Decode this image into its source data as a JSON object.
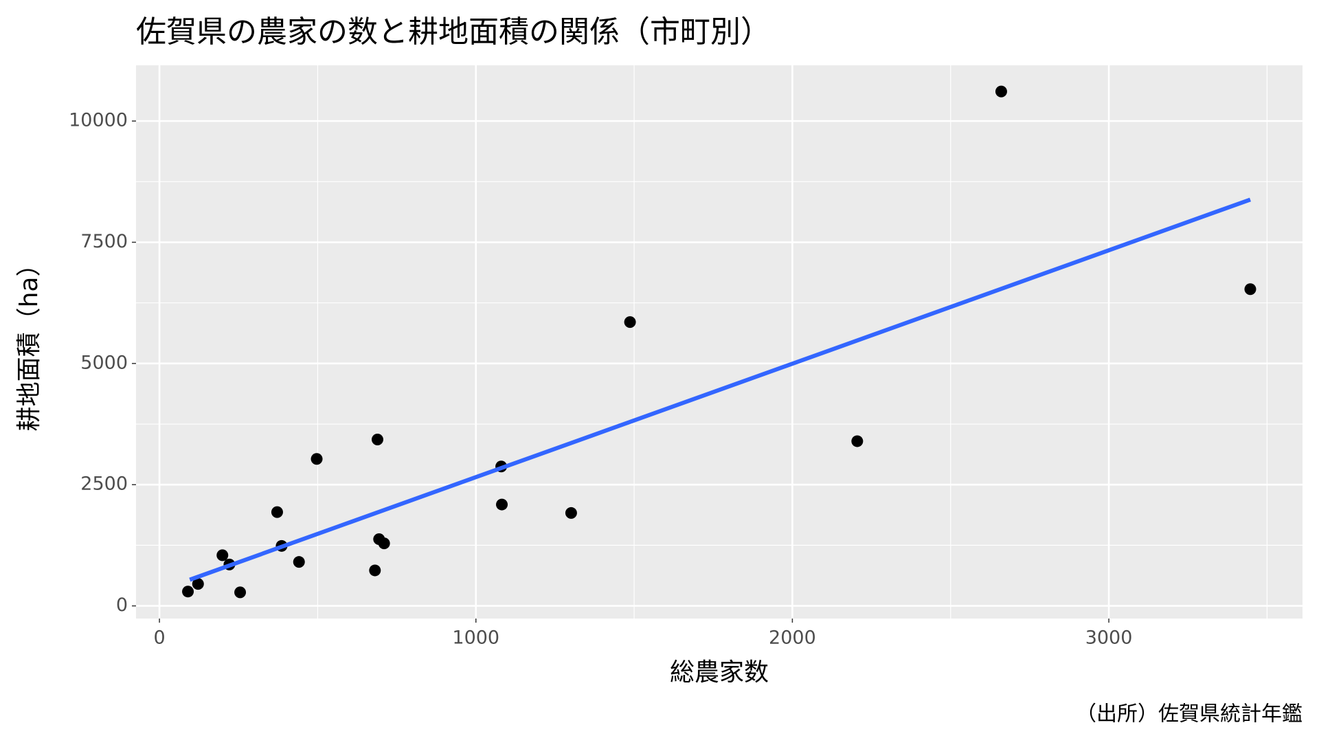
{
  "chart_data": {
    "type": "scatter",
    "title": "佐賀県の農家の数と耕地面積の関係（市町別）",
    "x_label": "総農家数",
    "y_label": "耕地面積（ha）",
    "caption": "（出所）佐賀県統計年鑑",
    "series": [
      {
        "color": "#000000",
        "x": [
          90,
          122,
          199,
          221,
          255,
          372,
          386,
          441,
          497,
          681,
          689,
          694,
          710,
          1080,
          1082,
          1301,
          1487,
          2205,
          2660,
          3447
        ],
        "values": [
          296,
          453,
          1045,
          854,
          279,
          1934,
          1237,
          906,
          3031,
          732,
          3432,
          1376,
          1289,
          2875,
          2091,
          1916,
          5854,
          3397,
          10610,
          6533
        ]
      }
    ],
    "trend_line": {
      "color": "#3366ff",
      "x": [
        96,
        3447
      ],
      "values": [
        540,
        8380
      ]
    },
    "xlim": [
      -74,
      3612
    ],
    "ylim": [
      -261,
      11150
    ],
    "xticks": [
      0,
      1000,
      2000,
      3000
    ],
    "yticks": [
      0,
      2500,
      5000,
      7500,
      10000
    ],
    "x_minor_grid": [
      500,
      1500,
      2500,
      3500
    ],
    "y_minor_grid": [
      1250,
      3750,
      6250,
      8750
    ],
    "grid": true
  }
}
